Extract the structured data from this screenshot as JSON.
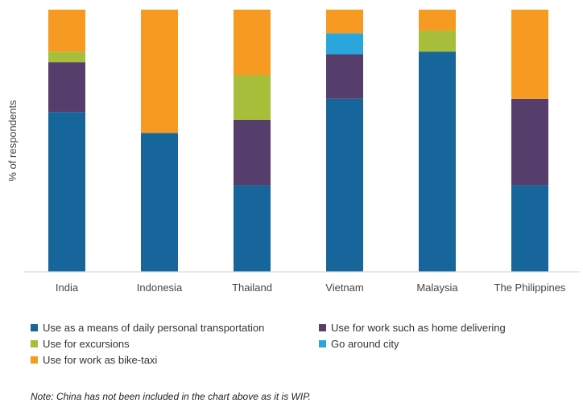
{
  "chart_data": {
    "type": "stacked-bar",
    "title": "",
    "xlabel": "",
    "ylabel": "% of respondents",
    "ylim": [
      0,
      100
    ],
    "grid": false,
    "legend_position": "bottom",
    "categories": [
      "India",
      "Indonesia",
      "Thailand",
      "Vietnam",
      "Malaysia",
      "The Philippines"
    ],
    "series": [
      {
        "name": "Use as a means of daily personal transportation",
        "color": "#16669b",
        "values": [
          61,
          53,
          33,
          66,
          84,
          33
        ]
      },
      {
        "name": "Use for work such as home delivering",
        "color": "#553e6b",
        "values": [
          19,
          0,
          25,
          17,
          0,
          33
        ]
      },
      {
        "name": "Use for excursions",
        "color": "#a7be3a",
        "values": [
          4,
          0,
          17,
          0,
          8,
          0
        ]
      },
      {
        "name": "Go around city",
        "color": "#2aa6dc",
        "values": [
          0,
          0,
          0,
          8,
          0,
          0
        ]
      },
      {
        "name": "Use for work as bike-taxi",
        "color": "#f69a22",
        "values": [
          16,
          47,
          25,
          9,
          8,
          34
        ]
      }
    ]
  },
  "note": "Note: China has not been included in the chart above as it is WIP."
}
